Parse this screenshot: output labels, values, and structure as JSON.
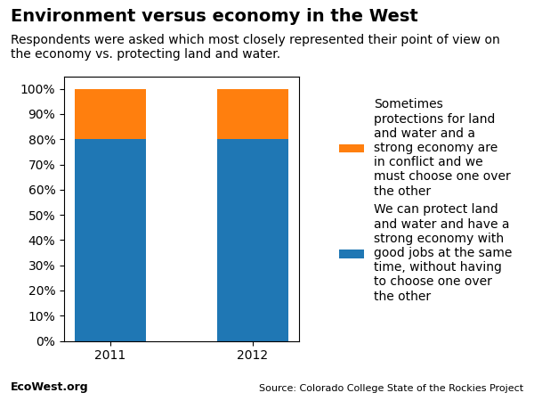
{
  "chart_data": {
    "type": "bar",
    "stacked": true,
    "title": "Environment versus economy in the West",
    "subtitle": "Respondents were asked which most closely represented their point of view on\nthe economy vs. protecting land and water.",
    "categories": [
      "2011",
      "2012"
    ],
    "series": [
      {
        "name": "We can protect land\nand water and have a\nstrong economy with\ngood jobs at the same\ntime, without having\nto choose one over\nthe other",
        "values": [
          80,
          80
        ]
      },
      {
        "name": "Sometimes\nprotections for land\nand water and a\nstrong economy are\nin conflict and we\nmust choose one over\nthe other",
        "values": [
          20,
          20
        ]
      }
    ],
    "ylim": [
      0,
      105
    ],
    "yticks": [
      {
        "value": 0,
        "label": "0%"
      },
      {
        "value": 10,
        "label": "10%"
      },
      {
        "value": 20,
        "label": "20%"
      },
      {
        "value": 30,
        "label": "30%"
      },
      {
        "value": 40,
        "label": "40%"
      },
      {
        "value": 50,
        "label": "50%"
      },
      {
        "value": 60,
        "label": "60%"
      },
      {
        "value": 70,
        "label": "70%"
      },
      {
        "value": 80,
        "label": "80%"
      },
      {
        "value": 90,
        "label": "90%"
      },
      {
        "value": 100,
        "label": "100%"
      }
    ],
    "grid": false,
    "legend": "right",
    "annotations": [
      "EcoWest.org",
      "Source: Colorado College State of the Rockies Project"
    ]
  }
}
